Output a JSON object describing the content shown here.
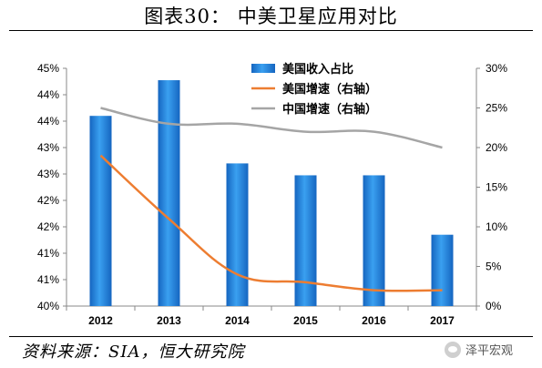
{
  "title": "图表30：   中美卫星应用对比",
  "source": "资料来源：SIA，恒大研究院",
  "watermark": "泽平宏观",
  "watermark_icon": "wechat-icon",
  "chart_data": {
    "type": "bar+line",
    "categories": [
      "2012",
      "2013",
      "2014",
      "2015",
      "2016",
      "2017"
    ],
    "left_axis": {
      "ylim": [
        40,
        45
      ],
      "tick_labels": [
        "40%",
        "41%",
        "41%",
        "42%",
        "42%",
        "43%",
        "43%",
        "44%",
        "44%",
        "45%"
      ]
    },
    "right_axis": {
      "ylim": [
        0,
        30
      ],
      "tick_labels": [
        "0%",
        "5%",
        "10%",
        "15%",
        "20%",
        "25%",
        "30%"
      ]
    },
    "series": [
      {
        "name": "美国收入占比",
        "type": "bar",
        "axis": "left",
        "color": "#1f8fe8",
        "values": [
          44.0,
          44.75,
          43.0,
          42.75,
          42.75,
          41.5
        ]
      },
      {
        "name": "美国增速（右轴）",
        "type": "line",
        "axis": "right",
        "color": "#ed7d31",
        "values": [
          19,
          11,
          4,
          3,
          2,
          2
        ]
      },
      {
        "name": "中国增速（右轴）",
        "type": "line",
        "axis": "right",
        "color": "#a5a5a5",
        "values": [
          25,
          23,
          23,
          22,
          22,
          20
        ]
      }
    ],
    "legend_position": "top-center",
    "grid": false
  }
}
